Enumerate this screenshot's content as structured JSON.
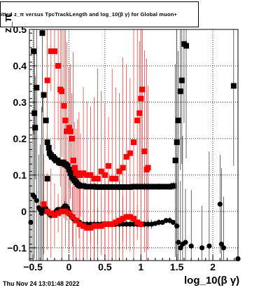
{
  "title": "itted  z_π versus TpcTrackLength and log_10(β γ) for Global muon+",
  "footer": "Thu Nov 24 13:01:48 2022",
  "chart_data": {
    "type": "scatter",
    "title": "itted  z_π versus TpcTrackLength and log_10(β γ) for Global muon+",
    "xlabel": "log_10(β γ)",
    "ylabel": "z_π",
    "xlim": [
      -0.55,
      2.35
    ],
    "ylim": [
      -0.135,
      0.5
    ],
    "xticks": [
      -0.5,
      0,
      0.5,
      1,
      1.5,
      2
    ],
    "xtick_labels": [
      "−0.5",
      "0",
      "0.5",
      "1",
      "1.5",
      "2"
    ],
    "yticks": [
      -0.1,
      0,
      0.1,
      0.2,
      0.3,
      0.4,
      0.5
    ],
    "ytick_labels": [
      "−0.1",
      "0",
      "0.1",
      "0.2",
      "0.3",
      "0.4",
      "0.5"
    ],
    "grid": true,
    "series": [
      {
        "color": "#000000",
        "marker": "square",
        "points": [
          [
            -0.49,
            0.44
          ],
          [
            -0.45,
            0.34
          ],
          [
            -0.47,
            0.23
          ],
          [
            -0.48,
            0.27
          ],
          [
            -0.37,
            0.49
          ],
          [
            -0.35,
            0.32
          ],
          [
            -0.32,
            0.25
          ],
          [
            -0.3,
            0.19
          ],
          [
            -0.3,
            0.09
          ],
          [
            -0.28,
            0.175
          ],
          [
            -0.27,
            0.16
          ],
          [
            -0.25,
            0.155
          ],
          [
            -0.24,
            0.15
          ],
          [
            -0.22,
            0.15
          ],
          [
            -0.2,
            0.145
          ],
          [
            -0.18,
            0.14
          ],
          [
            -0.16,
            0.14
          ],
          [
            -0.14,
            0.135
          ],
          [
            -0.12,
            0.133
          ],
          [
            -0.1,
            0.133
          ],
          [
            -0.08,
            0.135
          ],
          [
            -0.06,
            0.13
          ],
          [
            -0.04,
            0.128
          ],
          [
            -0.02,
            0.125
          ],
          [
            0.0,
            0.115
          ],
          [
            0.02,
            0.105
          ],
          [
            0.04,
            0.095
          ],
          [
            0.06,
            0.09
          ],
          [
            0.08,
            0.085
          ],
          [
            0.1,
            0.08
          ],
          [
            0.12,
            0.075
          ],
          [
            0.14,
            0.072
          ],
          [
            0.16,
            0.07
          ],
          [
            0.2,
            0.07
          ],
          [
            0.25,
            0.068
          ],
          [
            0.3,
            0.068
          ],
          [
            0.35,
            0.068
          ],
          [
            0.4,
            0.067
          ],
          [
            0.45,
            0.067
          ],
          [
            0.5,
            0.067
          ],
          [
            0.55,
            0.067
          ],
          [
            0.6,
            0.067
          ],
          [
            0.65,
            0.067
          ],
          [
            0.7,
            0.067
          ],
          [
            0.75,
            0.067
          ],
          [
            0.8,
            0.067
          ],
          [
            0.85,
            0.067
          ],
          [
            0.9,
            0.068
          ],
          [
            0.95,
            0.068
          ],
          [
            1.0,
            0.068
          ],
          [
            1.05,
            0.068
          ],
          [
            1.1,
            0.068
          ],
          [
            1.15,
            0.068
          ],
          [
            1.2,
            0.068
          ],
          [
            1.25,
            0.068
          ],
          [
            1.3,
            0.068
          ],
          [
            1.35,
            0.068
          ],
          [
            1.4,
            0.068
          ],
          [
            1.45,
            0.07
          ],
          [
            1.48,
            0.14
          ],
          [
            1.5,
            0.19
          ],
          [
            1.52,
            0.25
          ],
          [
            1.55,
            0.33
          ],
          [
            1.57,
            0.36
          ],
          [
            1.6,
            0.46
          ],
          [
            1.63,
            0.455
          ],
          [
            2.29,
            0.345
          ]
        ]
      },
      {
        "color": "#000000",
        "marker": "circle",
        "points": [
          [
            -0.53,
            -0.03
          ],
          [
            -0.5,
            0.045
          ],
          [
            -0.48,
            0.04
          ],
          [
            -0.45,
            0.03
          ],
          [
            -0.42,
            0.01
          ],
          [
            -0.4,
            0.005
          ],
          [
            -0.38,
            -0.005
          ],
          [
            -0.36,
            0.0
          ],
          [
            -0.34,
            0.01
          ],
          [
            -0.32,
            0.008
          ],
          [
            -0.3,
            0.0
          ],
          [
            -0.28,
            -0.005
          ],
          [
            -0.26,
            -0.01
          ],
          [
            -0.24,
            -0.01
          ],
          [
            -0.22,
            -0.008
          ],
          [
            -0.2,
            -0.005
          ],
          [
            -0.18,
            0.0
          ],
          [
            -0.16,
            0.005
          ],
          [
            -0.14,
            0.005
          ],
          [
            -0.12,
            0.002
          ],
          [
            -0.1,
            0.0
          ],
          [
            -0.08,
            0.01
          ],
          [
            -0.06,
            0.015
          ],
          [
            -0.04,
            0.015
          ],
          [
            -0.02,
            0.01
          ],
          [
            0.0,
            0.0
          ],
          [
            0.02,
            -0.01
          ],
          [
            0.04,
            -0.015
          ],
          [
            0.06,
            -0.02
          ],
          [
            0.08,
            -0.022
          ],
          [
            0.1,
            -0.025
          ],
          [
            0.15,
            -0.03
          ],
          [
            0.2,
            -0.035
          ],
          [
            0.25,
            -0.035
          ],
          [
            0.3,
            -0.035
          ],
          [
            0.35,
            -0.035
          ],
          [
            0.4,
            -0.035
          ],
          [
            0.45,
            -0.035
          ],
          [
            0.5,
            -0.035
          ],
          [
            0.55,
            -0.035
          ],
          [
            0.6,
            -0.035
          ],
          [
            0.65,
            -0.035
          ],
          [
            0.7,
            -0.035
          ],
          [
            0.75,
            -0.035
          ],
          [
            0.8,
            -0.035
          ],
          [
            0.85,
            -0.035
          ],
          [
            0.9,
            -0.035
          ],
          [
            0.95,
            -0.035
          ],
          [
            1.0,
            -0.035
          ],
          [
            1.05,
            -0.035
          ],
          [
            1.1,
            -0.035
          ],
          [
            1.15,
            -0.035
          ],
          [
            1.2,
            -0.033
          ],
          [
            1.25,
            -0.03
          ],
          [
            1.3,
            -0.03
          ],
          [
            1.35,
            -0.025
          ],
          [
            1.4,
            -0.025
          ],
          [
            1.45,
            -0.03
          ],
          [
            1.5,
            -0.04
          ],
          [
            1.52,
            -0.085
          ],
          [
            1.55,
            -0.1
          ],
          [
            1.58,
            -0.09
          ],
          [
            1.62,
            -0.085
          ],
          [
            1.7,
            -0.095
          ],
          [
            1.85,
            -0.1
          ],
          [
            1.95,
            -0.095
          ],
          [
            2.1,
            0.02
          ],
          [
            2.12,
            -0.09
          ],
          [
            2.15,
            -0.1
          ],
          [
            2.35,
            -0.13
          ]
        ]
      },
      {
        "color": "#ff0000",
        "marker": "square",
        "points": [
          [
            -0.3,
            0.36
          ],
          [
            -0.25,
            0.44
          ],
          [
            -0.2,
            0.44
          ],
          [
            -0.15,
            0.4
          ],
          [
            -0.12,
            0.335
          ],
          [
            -0.1,
            0.33
          ],
          [
            -0.07,
            0.29
          ],
          [
            -0.05,
            0.25
          ],
          [
            -0.03,
            0.22
          ],
          [
            0.0,
            0.23
          ],
          [
            0.02,
            0.22
          ],
          [
            0.04,
            0.2
          ],
          [
            0.06,
            0.14
          ],
          [
            0.08,
            0.12
          ],
          [
            0.1,
            0.105
          ],
          [
            0.12,
            0.105
          ],
          [
            0.14,
            0.1
          ],
          [
            0.16,
            0.1
          ],
          [
            0.2,
            0.105
          ],
          [
            0.25,
            0.1
          ],
          [
            0.3,
            0.1
          ],
          [
            0.35,
            0.09
          ],
          [
            0.4,
            0.09
          ],
          [
            0.45,
            0.11
          ],
          [
            0.5,
            0.1
          ],
          [
            0.55,
            0.125
          ],
          [
            0.6,
            0.09
          ],
          [
            0.65,
            0.09
          ],
          [
            0.7,
            0.11
          ],
          [
            0.75,
            0.12
          ],
          [
            0.8,
            0.15
          ],
          [
            0.85,
            0.16
          ],
          [
            0.9,
            0.19
          ],
          [
            0.95,
            0.25
          ],
          [
            0.98,
            0.27
          ],
          [
            1.0,
            0.31
          ],
          [
            1.02,
            0.335
          ],
          [
            1.05,
            0.165
          ],
          [
            1.08,
            0.115
          ],
          [
            1.1,
            0.12
          ],
          [
            -0.35,
            0.02
          ],
          [
            -0.3,
            0.0
          ],
          [
            -0.25,
            -0.005
          ],
          [
            -0.2,
            -0.01
          ],
          [
            -0.15,
            -0.005
          ],
          [
            -0.1,
            0.0
          ],
          [
            -0.05,
            0.0
          ],
          [
            0.0,
            -0.005
          ],
          [
            0.05,
            -0.015
          ],
          [
            0.1,
            -0.025
          ],
          [
            0.15,
            -0.035
          ],
          [
            0.2,
            -0.04
          ],
          [
            0.25,
            -0.045
          ],
          [
            0.3,
            -0.045
          ],
          [
            0.35,
            -0.04
          ],
          [
            0.4,
            -0.04
          ],
          [
            0.45,
            -0.04
          ],
          [
            0.5,
            -0.035
          ],
          [
            0.55,
            -0.035
          ],
          [
            0.6,
            -0.035
          ],
          [
            0.65,
            -0.03
          ],
          [
            0.7,
            -0.025
          ],
          [
            0.75,
            -0.02
          ],
          [
            0.8,
            -0.015
          ],
          [
            0.85,
            -0.015
          ],
          [
            0.9,
            -0.02
          ],
          [
            0.95,
            -0.03
          ],
          [
            1.0,
            -0.035
          ]
        ]
      }
    ]
  }
}
